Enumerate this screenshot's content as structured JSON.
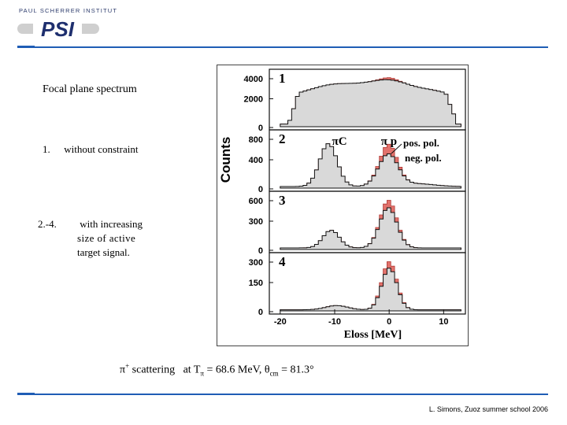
{
  "logo": {
    "institute": "PAUL SCHERRER INSTITUT",
    "mark": "PSI"
  },
  "colors": {
    "accent_rule": "#1f5db5",
    "spectrum_fill": "#d9d9d9",
    "difference_fill": "#e2726c"
  },
  "slide": {
    "heading": "Focal plane spectrum",
    "items": [
      {
        "num": "1.",
        "text": "without constraint"
      },
      {
        "num": "2.-4.",
        "lines": [
          "with increasing",
          "size of active",
          "target signal."
        ]
      }
    ],
    "caption": {
      "prefix": "π",
      "sup": "+",
      "mid": " scattering   at T",
      "sub1": "π",
      "mid2": " = 68.6 MeV, θ",
      "sub2": "cm",
      "suffix": " = 81.3°"
    },
    "footer": "L. Simons,  Zuoz summer school 2006"
  },
  "figure": {
    "ylabel": "Counts",
    "xlabel": "Eloss [MeV]",
    "xticks": [
      "-20",
      "-10",
      "0",
      "10"
    ],
    "annotations": {
      "pic": "πC",
      "pip": "π p",
      "pos": "pos. pol.",
      "neg": "neg. pol."
    },
    "panels": [
      {
        "label": "1",
        "yticks": [
          "4000",
          "2000",
          "0"
        ]
      },
      {
        "label": "2",
        "yticks": [
          "800",
          "400",
          "0"
        ]
      },
      {
        "label": "3",
        "yticks": [
          "600",
          "300",
          "0"
        ]
      },
      {
        "label": "4",
        "yticks": [
          "300",
          "150",
          "0"
        ]
      }
    ]
  }
}
